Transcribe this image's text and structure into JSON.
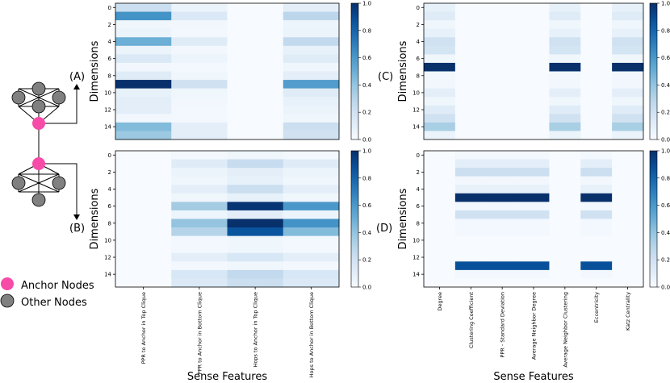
{
  "figure": {
    "panel_labels": [
      "(A)",
      "(B)",
      "(C)",
      "(D)"
    ],
    "legend": {
      "anchor_label": "Anchor Nodes",
      "other_label": "Other Nodes",
      "anchor_color": "#f64ba6",
      "other_color": "#808080"
    },
    "colormap": "Blues",
    "colorbar_ticks": [
      "0.0",
      "0.2",
      "0.4",
      "0.6",
      "0.8",
      "1.0"
    ]
  },
  "chart_data": [
    {
      "type": "heatmap",
      "panel": "(A)",
      "ylabel": "Dimensions",
      "xlabel": "",
      "yticks": [
        "0",
        "2",
        "4",
        "6",
        "8",
        "10",
        "12",
        "14"
      ],
      "xticks": [],
      "x_categories": [
        "PPR to Anchor in Top Clique",
        "PPR to Anchor in Bottom Clique",
        "Hops to Anchor in Top Clique",
        "Hops to Anchor in Bottom Clique"
      ],
      "clim": [
        0,
        1
      ],
      "values": [
        [
          0.22,
          0.06,
          0.0,
          0.1
        ],
        [
          0.62,
          0.14,
          0.0,
          0.28
        ],
        [
          0.04,
          0.03,
          0.0,
          0.05
        ],
        [
          0.06,
          0.02,
          0.0,
          0.06
        ],
        [
          0.5,
          0.12,
          0.0,
          0.26
        ],
        [
          0.06,
          0.03,
          0.0,
          0.08
        ],
        [
          0.14,
          0.05,
          0.0,
          0.12
        ],
        [
          0.03,
          0.02,
          0.0,
          0.04
        ],
        [
          0.12,
          0.04,
          0.0,
          0.1
        ],
        [
          1.0,
          0.2,
          0.0,
          0.58
        ],
        [
          0.08,
          0.04,
          0.0,
          0.12
        ],
        [
          0.1,
          0.03,
          0.0,
          0.08
        ],
        [
          0.1,
          0.02,
          0.0,
          0.06
        ],
        [
          0.03,
          0.02,
          0.0,
          0.04
        ],
        [
          0.44,
          0.1,
          0.0,
          0.22
        ],
        [
          0.38,
          0.1,
          0.0,
          0.2
        ]
      ]
    },
    {
      "type": "heatmap",
      "panel": "(B)",
      "ylabel": "Dimensions",
      "xlabel": "Sense Features",
      "yticks": [
        "0",
        "2",
        "4",
        "6",
        "8",
        "10",
        "12",
        "14"
      ],
      "xticks": [
        "PPR to Anchor in Top Clique",
        "PPR to Anchor in Bottom Clique",
        "Hops to Anchor in Top Clique",
        "Hops to Anchor in Bottom Clique"
      ],
      "clim": [
        0,
        1
      ],
      "values": [
        [
          0.0,
          0.02,
          0.04,
          0.02
        ],
        [
          0.0,
          0.12,
          0.24,
          0.12
        ],
        [
          0.0,
          0.06,
          0.1,
          0.06
        ],
        [
          0.0,
          0.04,
          0.08,
          0.04
        ],
        [
          0.0,
          0.1,
          0.22,
          0.1
        ],
        [
          0.0,
          0.04,
          0.08,
          0.04
        ],
        [
          0.0,
          0.36,
          0.98,
          0.6
        ],
        [
          0.0,
          0.05,
          0.1,
          0.05
        ],
        [
          0.0,
          0.4,
          1.0,
          0.62
        ],
        [
          0.0,
          0.3,
          0.86,
          0.44
        ],
        [
          0.0,
          0.02,
          0.04,
          0.02
        ],
        [
          0.0,
          0.02,
          0.04,
          0.02
        ],
        [
          0.0,
          0.1,
          0.16,
          0.1
        ],
        [
          0.0,
          0.02,
          0.04,
          0.02
        ],
        [
          0.0,
          0.16,
          0.26,
          0.16
        ],
        [
          0.0,
          0.14,
          0.22,
          0.14
        ]
      ]
    },
    {
      "type": "heatmap",
      "panel": "(C)",
      "ylabel": "Dimensions",
      "xlabel": "",
      "yticks": [
        "0",
        "2",
        "4",
        "6",
        "8",
        "10",
        "12",
        "14"
      ],
      "xticks": [],
      "x_categories": [
        "Degree",
        "Clustering Coefficient",
        "PPR - Standard Deviation",
        "Average Neighbor Degree",
        "Average Neighbor Clustering",
        "Eccentricity",
        "Katz Centrality"
      ],
      "clim": [
        0,
        1
      ],
      "values": [
        [
          0.08,
          0.0,
          0.0,
          0.0,
          0.08,
          0.0,
          0.08
        ],
        [
          0.12,
          0.0,
          0.0,
          0.0,
          0.12,
          0.0,
          0.12
        ],
        [
          0.04,
          0.0,
          0.0,
          0.0,
          0.04,
          0.0,
          0.04
        ],
        [
          0.08,
          0.0,
          0.0,
          0.0,
          0.08,
          0.0,
          0.08
        ],
        [
          0.2,
          0.0,
          0.0,
          0.0,
          0.2,
          0.0,
          0.2
        ],
        [
          0.18,
          0.0,
          0.0,
          0.0,
          0.18,
          0.0,
          0.18
        ],
        [
          0.04,
          0.0,
          0.0,
          0.0,
          0.04,
          0.0,
          0.04
        ],
        [
          1.0,
          0.0,
          0.0,
          0.0,
          1.0,
          0.0,
          1.0
        ],
        [
          0.03,
          0.0,
          0.0,
          0.0,
          0.03,
          0.0,
          0.03
        ],
        [
          0.03,
          0.0,
          0.0,
          0.0,
          0.03,
          0.0,
          0.03
        ],
        [
          0.1,
          0.0,
          0.0,
          0.0,
          0.1,
          0.0,
          0.1
        ],
        [
          0.04,
          0.0,
          0.0,
          0.0,
          0.04,
          0.0,
          0.04
        ],
        [
          0.12,
          0.0,
          0.0,
          0.0,
          0.12,
          0.0,
          0.12
        ],
        [
          0.2,
          0.0,
          0.0,
          0.0,
          0.2,
          0.0,
          0.2
        ],
        [
          0.34,
          0.0,
          0.0,
          0.0,
          0.34,
          0.0,
          0.34
        ],
        [
          0.06,
          0.0,
          0.0,
          0.0,
          0.06,
          0.0,
          0.06
        ]
      ]
    },
    {
      "type": "heatmap",
      "panel": "(D)",
      "ylabel": "Dimensions",
      "xlabel": "Sense Features",
      "yticks": [
        "0",
        "2",
        "4",
        "6",
        "8",
        "10",
        "12",
        "14"
      ],
      "xticks": [
        "Degree",
        "Clustering Coefficient",
        "PPR - Standard Deviation",
        "Average Neighbor Degree",
        "Average Neighbor Clustering",
        "Eccentricity",
        "Katz Centrality"
      ],
      "clim": [
        0,
        1
      ],
      "values": [
        [
          0.0,
          0.02,
          0.02,
          0.02,
          0.0,
          0.02,
          0.0
        ],
        [
          0.0,
          0.1,
          0.1,
          0.1,
          0.0,
          0.1,
          0.0
        ],
        [
          0.0,
          0.22,
          0.22,
          0.22,
          0.0,
          0.22,
          0.0
        ],
        [
          0.0,
          0.03,
          0.03,
          0.03,
          0.0,
          0.03,
          0.0
        ],
        [
          0.0,
          0.08,
          0.08,
          0.08,
          0.0,
          0.08,
          0.0
        ],
        [
          0.0,
          1.0,
          1.0,
          1.0,
          0.0,
          1.0,
          0.0
        ],
        [
          0.0,
          0.02,
          0.02,
          0.02,
          0.0,
          0.02,
          0.0
        ],
        [
          0.0,
          0.2,
          0.2,
          0.2,
          0.0,
          0.2,
          0.0
        ],
        [
          0.0,
          0.02,
          0.02,
          0.02,
          0.0,
          0.02,
          0.0
        ],
        [
          0.0,
          0.02,
          0.02,
          0.02,
          0.0,
          0.02,
          0.0
        ],
        [
          0.0,
          0.0,
          0.0,
          0.0,
          0.0,
          0.0,
          0.0
        ],
        [
          0.0,
          0.0,
          0.0,
          0.0,
          0.0,
          0.0,
          0.0
        ],
        [
          0.0,
          0.0,
          0.0,
          0.0,
          0.0,
          0.0,
          0.0
        ],
        [
          0.0,
          0.88,
          0.88,
          0.88,
          0.0,
          0.88,
          0.0
        ],
        [
          0.0,
          0.02,
          0.02,
          0.02,
          0.0,
          0.02,
          0.0
        ],
        [
          0.0,
          0.0,
          0.0,
          0.0,
          0.0,
          0.0,
          0.0
        ]
      ]
    }
  ]
}
